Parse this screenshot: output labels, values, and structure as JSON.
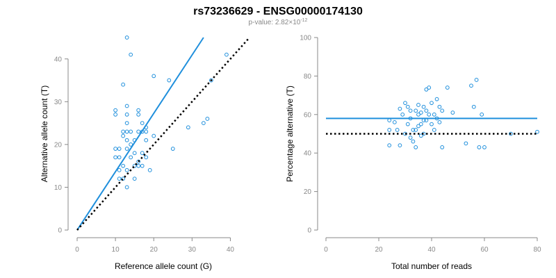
{
  "title": "rs73236629 - ENSG00000174130",
  "subtitle_prefix": "p-value: 2.82×10",
  "subtitle_exponent": "-12",
  "chart_data": [
    {
      "type": "scatter",
      "xlabel": "Reference allele count (G)",
      "ylabel": "Alternative allele count (T)",
      "xlim": [
        0,
        45
      ],
      "ylim": [
        0,
        45
      ],
      "xticks": [
        0,
        10,
        20,
        30,
        40
      ],
      "yticks": [
        0,
        10,
        20,
        30,
        40
      ],
      "point_color": "#1f8fdc",
      "lines": [
        {
          "style": "solid",
          "color": "#1f8fdc",
          "x": [
            0,
            33
          ],
          "y": [
            0,
            45
          ]
        },
        {
          "style": "dotted",
          "color": "#000000",
          "x": [
            0,
            45
          ],
          "y": [
            0,
            45
          ]
        }
      ],
      "points": [
        [
          13,
          45
        ],
        [
          14,
          41
        ],
        [
          39,
          41
        ],
        [
          20,
          36
        ],
        [
          12,
          34
        ],
        [
          24,
          35
        ],
        [
          35,
          35
        ],
        [
          10,
          28
        ],
        [
          16,
          28
        ],
        [
          10,
          27
        ],
        [
          13,
          29
        ],
        [
          13,
          27
        ],
        [
          16,
          27
        ],
        [
          17,
          25
        ],
        [
          18,
          24
        ],
        [
          13,
          25
        ],
        [
          29,
          24
        ],
        [
          33,
          25
        ],
        [
          34,
          26
        ],
        [
          12,
          23
        ],
        [
          13,
          23
        ],
        [
          14,
          23
        ],
        [
          16,
          23
        ],
        [
          17,
          23
        ],
        [
          18,
          23
        ],
        [
          12,
          22
        ],
        [
          20,
          22
        ],
        [
          13,
          21
        ],
        [
          15,
          21
        ],
        [
          18,
          21
        ],
        [
          14,
          20
        ],
        [
          10,
          19
        ],
        [
          11,
          19
        ],
        [
          13,
          19
        ],
        [
          25,
          19
        ],
        [
          15,
          18
        ],
        [
          17,
          18
        ],
        [
          10,
          17
        ],
        [
          11,
          17
        ],
        [
          14,
          17
        ],
        [
          18,
          17
        ],
        [
          16,
          16
        ],
        [
          15,
          15
        ],
        [
          16,
          15
        ],
        [
          17,
          15
        ],
        [
          19,
          14
        ],
        [
          12,
          15
        ],
        [
          11,
          14
        ],
        [
          13,
          14
        ],
        [
          11,
          12
        ],
        [
          12,
          12
        ],
        [
          15,
          12
        ],
        [
          13,
          10
        ]
      ]
    },
    {
      "type": "scatter",
      "xlabel": "Total number of reads",
      "ylabel": "Percentage alternative (T)",
      "xlim": [
        0,
        80
      ],
      "ylim": [
        0,
        100
      ],
      "xticks": [
        0,
        20,
        40,
        60,
        80
      ],
      "yticks": [
        0,
        20,
        40,
        60,
        80,
        100
      ],
      "point_color": "#1f8fdc",
      "lines": [
        {
          "style": "solid",
          "color": "#1f8fdc",
          "x": [
            0,
            80
          ],
          "y": [
            58,
            58
          ]
        },
        {
          "style": "dotted",
          "color": "#000000",
          "x": [
            0,
            80
          ],
          "y": [
            50,
            50
          ]
        }
      ],
      "points": [
        [
          24,
          57
        ],
        [
          24,
          52
        ],
        [
          24,
          44
        ],
        [
          26,
          56
        ],
        [
          27,
          52
        ],
        [
          28,
          63
        ],
        [
          28,
          44
        ],
        [
          29,
          60
        ],
        [
          30,
          66
        ],
        [
          30,
          50
        ],
        [
          31,
          64
        ],
        [
          31,
          55
        ],
        [
          32,
          62
        ],
        [
          32,
          48
        ],
        [
          33,
          52
        ],
        [
          33,
          46
        ],
        [
          34,
          62
        ],
        [
          34,
          43
        ],
        [
          35,
          60
        ],
        [
          35,
          54
        ],
        [
          36,
          55
        ],
        [
          36,
          49
        ],
        [
          37,
          64
        ],
        [
          37,
          57
        ],
        [
          37,
          50
        ],
        [
          38,
          73
        ],
        [
          38,
          62
        ],
        [
          39,
          74
        ],
        [
          39,
          60
        ],
        [
          40,
          55
        ],
        [
          40,
          66
        ],
        [
          41,
          60
        ],
        [
          41,
          52
        ],
        [
          42,
          68
        ],
        [
          42,
          58
        ],
        [
          43,
          64
        ],
        [
          43,
          56
        ],
        [
          44,
          62
        ],
        [
          44,
          43
        ],
        [
          46,
          74
        ],
        [
          48,
          61
        ],
        [
          53,
          45
        ],
        [
          55,
          75
        ],
        [
          56,
          64
        ],
        [
          57,
          78
        ],
        [
          58,
          43
        ],
        [
          59,
          60
        ],
        [
          60,
          43
        ],
        [
          70,
          50
        ],
        [
          80,
          51
        ],
        [
          32,
          58
        ],
        [
          35,
          65
        ],
        [
          38,
          57
        ],
        [
          34,
          52
        ],
        [
          36,
          61
        ]
      ]
    }
  ]
}
